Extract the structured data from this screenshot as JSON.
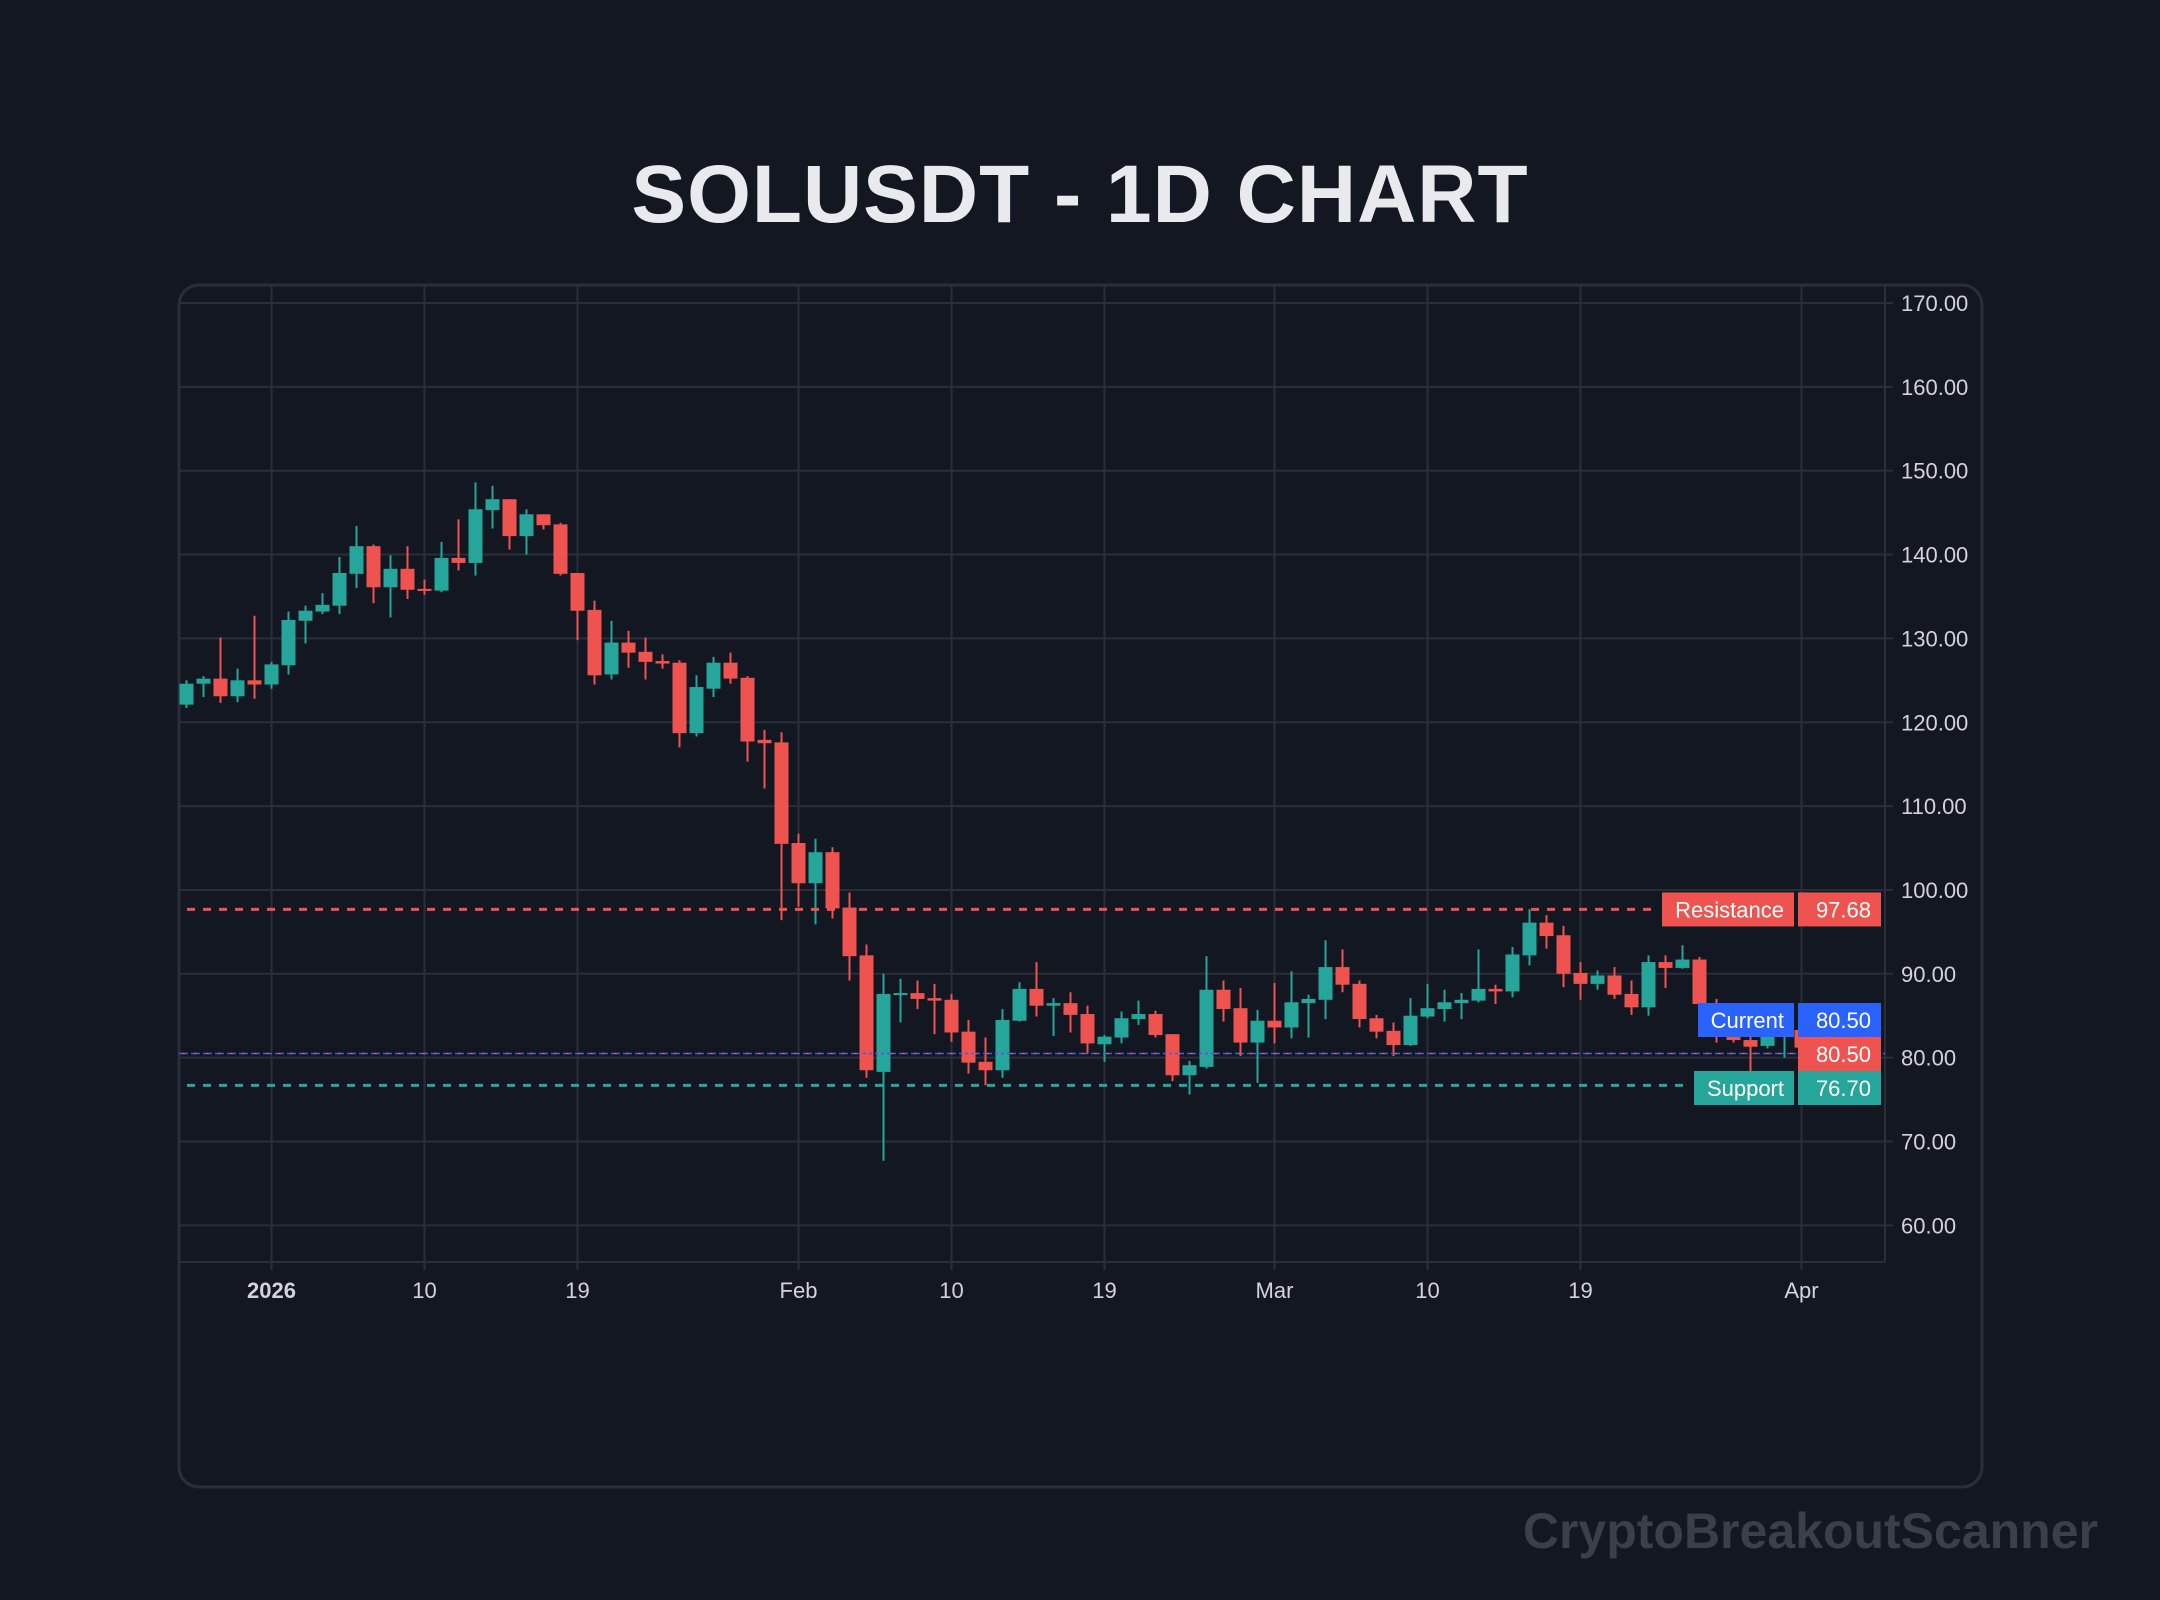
{
  "chart_data": {
    "type": "candlestick",
    "title": "SOLUSDT - 1D CHART",
    "watermark": "CryptoBreakoutScanner",
    "colors": {
      "background": "#131722",
      "grid": "#2a2e39",
      "up": "#26a69a",
      "down": "#ef5350",
      "current": "#2962ff",
      "text": "#d1d4dc"
    },
    "grid": true,
    "ylim": [
      55.5,
      172
    ],
    "yticks": [
      "60.00",
      "70.00",
      "80.00",
      "90.00",
      "100.00",
      "110.00",
      "120.00",
      "130.00",
      "140.00",
      "150.00",
      "160.00",
      "170.00"
    ],
    "xticks": [
      {
        "date": "2026-01-01",
        "label": "2026"
      },
      {
        "date": "2026-01-10",
        "label": "10"
      },
      {
        "date": "2026-01-19",
        "label": "19"
      },
      {
        "date": "2026-02-01",
        "label": "Feb"
      },
      {
        "date": "2026-02-10",
        "label": "10"
      },
      {
        "date": "2026-02-19",
        "label": "19"
      },
      {
        "date": "2026-03-01",
        "label": "Mar"
      },
      {
        "date": "2026-03-10",
        "label": "10"
      },
      {
        "date": "2026-03-19",
        "label": "19"
      },
      {
        "date": "2026-04-01",
        "label": "Apr"
      }
    ],
    "levels": {
      "resistance": {
        "label": "Resistance",
        "value": "97.68",
        "color": "#ef5350"
      },
      "current": {
        "label": "Current",
        "value": "80.50",
        "color": "#2962ff"
      },
      "last": {
        "value": "80.50",
        "color": "#ef5350"
      },
      "support": {
        "label": "Support",
        "value": "76.70",
        "color": "#26a69a"
      }
    },
    "candles": [
      [
        "2025-12-27",
        122.1,
        125.0,
        121.7,
        124.6
      ],
      [
        "2025-12-28",
        124.6,
        125.5,
        123.0,
        125.2
      ],
      [
        "2025-12-29",
        125.2,
        130.1,
        122.3,
        123.1
      ],
      [
        "2025-12-30",
        123.1,
        126.4,
        122.4,
        125.0
      ],
      [
        "2025-12-31",
        125.0,
        132.7,
        122.8,
        124.5
      ],
      [
        "2026-01-01",
        124.5,
        127.2,
        124.0,
        126.9
      ],
      [
        "2026-01-02",
        126.8,
        133.2,
        125.7,
        132.2
      ],
      [
        "2026-01-03",
        132.1,
        133.9,
        129.4,
        133.3
      ],
      [
        "2026-01-04",
        133.2,
        135.4,
        132.9,
        134.0
      ],
      [
        "2026-01-05",
        133.9,
        139.7,
        132.9,
        137.8
      ],
      [
        "2026-01-06",
        137.7,
        143.4,
        136.0,
        141.0
      ],
      [
        "2026-01-07",
        141.0,
        141.2,
        134.2,
        136.1
      ],
      [
        "2026-01-08",
        136.1,
        139.9,
        132.5,
        138.3
      ],
      [
        "2026-01-09",
        138.3,
        141.0,
        134.7,
        135.8
      ],
      [
        "2026-01-10",
        135.9,
        137.0,
        135.2,
        135.8
      ],
      [
        "2026-01-11",
        135.7,
        141.5,
        135.5,
        139.6
      ],
      [
        "2026-01-12",
        139.6,
        144.2,
        138.1,
        139.0
      ],
      [
        "2026-01-13",
        139.0,
        148.6,
        137.5,
        145.4
      ],
      [
        "2026-01-14",
        145.3,
        148.2,
        143.1,
        146.6
      ],
      [
        "2026-01-15",
        146.6,
        146.6,
        140.6,
        142.2
      ],
      [
        "2026-01-16",
        142.2,
        145.4,
        140.0,
        144.8
      ],
      [
        "2026-01-17",
        144.8,
        144.8,
        143.0,
        143.5
      ],
      [
        "2026-01-18",
        143.6,
        143.8,
        137.5,
        137.7
      ],
      [
        "2026-01-19",
        137.8,
        137.8,
        129.8,
        133.3
      ],
      [
        "2026-01-20",
        133.4,
        134.5,
        124.5,
        125.6
      ],
      [
        "2026-01-21",
        125.7,
        132.1,
        125.1,
        129.5
      ],
      [
        "2026-01-22",
        129.5,
        130.9,
        126.5,
        128.3
      ],
      [
        "2026-01-23",
        128.4,
        130.1,
        125.1,
        127.2
      ],
      [
        "2026-01-24",
        127.3,
        128.1,
        126.4,
        127.0
      ],
      [
        "2026-01-25",
        127.1,
        127.4,
        117.0,
        118.7
      ],
      [
        "2026-01-26",
        118.7,
        125.6,
        118.3,
        124.2
      ],
      [
        "2026-01-27",
        124.0,
        127.8,
        123.0,
        127.1
      ],
      [
        "2026-01-28",
        127.1,
        128.3,
        124.6,
        125.2
      ],
      [
        "2026-01-29",
        125.3,
        125.5,
        115.3,
        117.7
      ],
      [
        "2026-01-30",
        117.9,
        119.1,
        112.1,
        117.5
      ],
      [
        "2026-01-31",
        117.6,
        118.8,
        96.4,
        105.5
      ],
      [
        "2026-02-01",
        105.6,
        106.7,
        98.0,
        100.8
      ],
      [
        "2026-02-02",
        100.8,
        106.1,
        95.9,
        104.5
      ],
      [
        "2026-02-03",
        104.5,
        105.1,
        96.6,
        97.8
      ],
      [
        "2026-02-04",
        97.9,
        99.7,
        89.2,
        92.1
      ],
      [
        "2026-02-05",
        92.2,
        93.5,
        77.6,
        78.5
      ],
      [
        "2026-02-06",
        78.3,
        90.0,
        67.7,
        87.6
      ],
      [
        "2026-02-07",
        87.6,
        89.4,
        84.2,
        87.7
      ],
      [
        "2026-02-08",
        87.7,
        89.2,
        85.8,
        87.0
      ],
      [
        "2026-02-09",
        87.1,
        88.8,
        82.8,
        86.8
      ],
      [
        "2026-02-10",
        86.9,
        87.6,
        81.9,
        83.0
      ],
      [
        "2026-02-11",
        83.1,
        84.5,
        78.1,
        79.4
      ],
      [
        "2026-02-12",
        79.5,
        82.4,
        76.7,
        78.5
      ],
      [
        "2026-02-13",
        78.5,
        85.8,
        77.6,
        84.5
      ],
      [
        "2026-02-14",
        84.4,
        89.0,
        84.3,
        88.2
      ],
      [
        "2026-02-15",
        88.2,
        91.4,
        84.9,
        86.2
      ],
      [
        "2026-02-16",
        86.2,
        87.1,
        82.6,
        86.5
      ],
      [
        "2026-02-17",
        86.5,
        87.8,
        83.0,
        85.1
      ],
      [
        "2026-02-18",
        85.2,
        86.2,
        80.5,
        81.7
      ],
      [
        "2026-02-19",
        81.6,
        82.7,
        79.5,
        82.5
      ],
      [
        "2026-02-20",
        82.4,
        85.5,
        81.7,
        84.7
      ],
      [
        "2026-02-21",
        84.6,
        86.8,
        83.9,
        85.2
      ],
      [
        "2026-02-22",
        85.2,
        85.6,
        82.4,
        82.7
      ],
      [
        "2026-02-23",
        82.8,
        82.8,
        77.2,
        77.9
      ],
      [
        "2026-02-24",
        77.9,
        79.6,
        75.6,
        79.1
      ],
      [
        "2026-02-25",
        78.9,
        92.1,
        78.7,
        88.1
      ],
      [
        "2026-02-26",
        88.1,
        89.2,
        84.3,
        85.8
      ],
      [
        "2026-02-27",
        85.9,
        88.3,
        80.2,
        81.8
      ],
      [
        "2026-02-28",
        81.8,
        85.7,
        77.0,
        84.4
      ],
      [
        "2026-03-01",
        84.4,
        88.9,
        81.7,
        83.6
      ],
      [
        "2026-03-02",
        83.6,
        90.3,
        82.3,
        86.6
      ],
      [
        "2026-03-03",
        86.5,
        87.5,
        82.4,
        87.0
      ],
      [
        "2026-03-04",
        86.9,
        94.0,
        84.6,
        90.8
      ],
      [
        "2026-03-05",
        90.8,
        92.9,
        87.8,
        88.7
      ],
      [
        "2026-03-06",
        88.8,
        89.2,
        83.6,
        84.6
      ],
      [
        "2026-03-07",
        84.7,
        85.1,
        82.3,
        83.1
      ],
      [
        "2026-03-08",
        83.2,
        84.2,
        80.2,
        81.5
      ],
      [
        "2026-03-09",
        81.5,
        87.1,
        81.4,
        85.0
      ],
      [
        "2026-03-10",
        84.9,
        88.8,
        84.7,
        85.9
      ],
      [
        "2026-03-11",
        85.8,
        88.1,
        84.3,
        86.6
      ],
      [
        "2026-03-12",
        86.5,
        87.7,
        84.6,
        86.9
      ],
      [
        "2026-03-13",
        86.8,
        92.9,
        86.6,
        88.2
      ],
      [
        "2026-03-14",
        88.2,
        88.7,
        86.4,
        87.9
      ],
      [
        "2026-03-15",
        87.9,
        93.2,
        87.2,
        92.3
      ],
      [
        "2026-03-16",
        92.2,
        97.7,
        91.0,
        96.1
      ],
      [
        "2026-03-17",
        96.1,
        97.0,
        93.0,
        94.5
      ],
      [
        "2026-03-18",
        94.6,
        95.7,
        88.4,
        90.0
      ],
      [
        "2026-03-19",
        90.1,
        91.4,
        86.9,
        88.8
      ],
      [
        "2026-03-20",
        88.8,
        90.4,
        88.1,
        89.8
      ],
      [
        "2026-03-21",
        89.8,
        90.8,
        87.0,
        87.5
      ],
      [
        "2026-03-22",
        87.6,
        89.2,
        85.1,
        86.0
      ],
      [
        "2026-03-23",
        86.0,
        92.2,
        85.0,
        91.4
      ],
      [
        "2026-03-24",
        91.4,
        92.2,
        88.3,
        90.7
      ],
      [
        "2026-03-25",
        90.7,
        93.4,
        90.6,
        91.7
      ],
      [
        "2026-03-26",
        91.7,
        92.0,
        85.3,
        86.4
      ],
      [
        "2026-03-27",
        86.5,
        87.0,
        81.8,
        83.0
      ],
      [
        "2026-03-28",
        83.1,
        84.3,
        81.8,
        82.1
      ],
      [
        "2026-03-29",
        82.1,
        83.3,
        77.9,
        81.3
      ],
      [
        "2026-03-30",
        81.4,
        84.9,
        81.1,
        82.6
      ],
      [
        "2026-03-31",
        82.6,
        84.5,
        80.0,
        83.3
      ],
      [
        "2026-04-01",
        83.3,
        86.4,
        80.5,
        81.2
      ],
      [
        "2026-04-02",
        81.3,
        81.9,
        75.4,
        79.1
      ],
      [
        "2026-04-03",
        79.1,
        81.1,
        78.9,
        80.6
      ],
      [
        "2026-04-04",
        80.6,
        81.8,
        79.7,
        80.9
      ],
      [
        "2026-04-05",
        80.6,
        80.7,
        80.4,
        80.5
      ]
    ],
    "candle_fields": [
      "date",
      "open",
      "high",
      "low",
      "close"
    ]
  }
}
